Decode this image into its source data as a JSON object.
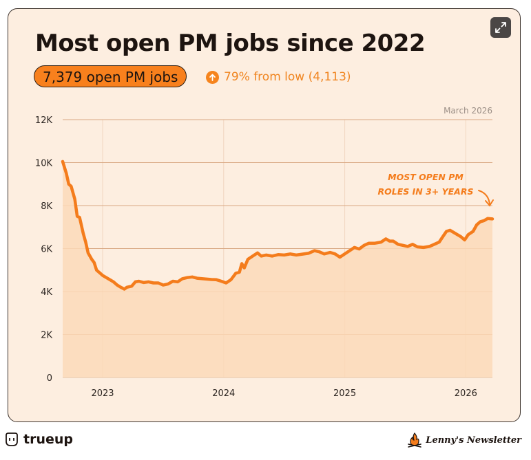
{
  "title": "Most open PM jobs since 2022",
  "headline_pill": "7,379 open PM jobs",
  "change_text": "79% from low (4,113)",
  "as_of": "March 2026",
  "annotation": [
    "MOST OPEN PM",
    "ROLES IN 3+ YEARS"
  ],
  "brand_left": "trueup",
  "brand_right": "Lenny's Newsletter",
  "icons": {
    "expand": "expand-icon",
    "change": "arrow-up-circle-icon",
    "brand_left": "trueup-logo-icon",
    "brand_right": "lenny-flame-icon"
  },
  "colors": {
    "line": "#f47c1c",
    "area": "#fcd9b8",
    "accent": "#f8801d",
    "background": "#fdeee0"
  },
  "chart_data": {
    "type": "area",
    "yticks": [
      "0",
      "2K",
      "4K",
      "6K",
      "8K",
      "10K",
      "12K"
    ],
    "xticks": [
      {
        "label": "2023",
        "x": 2023.0
      },
      {
        "label": "2024",
        "x": 2024.0
      },
      {
        "label": "2025",
        "x": 2025.0
      },
      {
        "label": "2026",
        "x": 2026.0
      }
    ],
    "xlim": [
      2022.67,
      2026.22
    ],
    "ylim": [
      0,
      12000
    ],
    "grid": true,
    "points": [
      [
        2022.67,
        10050
      ],
      [
        2022.7,
        9500
      ],
      [
        2022.72,
        9000
      ],
      [
        2022.74,
        8900
      ],
      [
        2022.77,
        8300
      ],
      [
        2022.79,
        7500
      ],
      [
        2022.81,
        7450
      ],
      [
        2022.84,
        6700
      ],
      [
        2022.86,
        6300
      ],
      [
        2022.88,
        5800
      ],
      [
        2022.91,
        5500
      ],
      [
        2022.93,
        5350
      ],
      [
        2022.95,
        5000
      ],
      [
        2022.98,
        4850
      ],
      [
        2023.0,
        4750
      ],
      [
        2023.03,
        4650
      ],
      [
        2023.06,
        4550
      ],
      [
        2023.09,
        4450
      ],
      [
        2023.12,
        4300
      ],
      [
        2023.15,
        4200
      ],
      [
        2023.18,
        4113
      ],
      [
        2023.2,
        4200
      ],
      [
        2023.24,
        4250
      ],
      [
        2023.27,
        4450
      ],
      [
        2023.3,
        4480
      ],
      [
        2023.34,
        4420
      ],
      [
        2023.38,
        4450
      ],
      [
        2023.42,
        4400
      ],
      [
        2023.46,
        4400
      ],
      [
        2023.5,
        4300
      ],
      [
        2023.54,
        4350
      ],
      [
        2023.58,
        4480
      ],
      [
        2023.62,
        4450
      ],
      [
        2023.66,
        4600
      ],
      [
        2023.7,
        4650
      ],
      [
        2023.74,
        4680
      ],
      [
        2023.78,
        4620
      ],
      [
        2023.82,
        4600
      ],
      [
        2023.86,
        4580
      ],
      [
        2023.9,
        4560
      ],
      [
        2023.94,
        4550
      ],
      [
        2023.98,
        4480
      ],
      [
        2024.02,
        4400
      ],
      [
        2024.06,
        4550
      ],
      [
        2024.1,
        4850
      ],
      [
        2024.13,
        4900
      ],
      [
        2024.15,
        5300
      ],
      [
        2024.17,
        5100
      ],
      [
        2024.2,
        5500
      ],
      [
        2024.24,
        5650
      ],
      [
        2024.28,
        5800
      ],
      [
        2024.31,
        5650
      ],
      [
        2024.35,
        5700
      ],
      [
        2024.4,
        5650
      ],
      [
        2024.45,
        5720
      ],
      [
        2024.5,
        5700
      ],
      [
        2024.55,
        5750
      ],
      [
        2024.6,
        5700
      ],
      [
        2024.65,
        5740
      ],
      [
        2024.7,
        5780
      ],
      [
        2024.75,
        5900
      ],
      [
        2024.79,
        5850
      ],
      [
        2024.83,
        5750
      ],
      [
        2024.88,
        5820
      ],
      [
        2024.92,
        5750
      ],
      [
        2024.96,
        5600
      ],
      [
        2025.0,
        5750
      ],
      [
        2025.04,
        5900
      ],
      [
        2025.08,
        6050
      ],
      [
        2025.12,
        5980
      ],
      [
        2025.16,
        6150
      ],
      [
        2025.2,
        6250
      ],
      [
        2025.25,
        6250
      ],
      [
        2025.3,
        6300
      ],
      [
        2025.34,
        6450
      ],
      [
        2025.37,
        6350
      ],
      [
        2025.4,
        6350
      ],
      [
        2025.44,
        6200
      ],
      [
        2025.48,
        6150
      ],
      [
        2025.52,
        6100
      ],
      [
        2025.56,
        6200
      ],
      [
        2025.6,
        6080
      ],
      [
        2025.65,
        6050
      ],
      [
        2025.7,
        6100
      ],
      [
        2025.74,
        6200
      ],
      [
        2025.78,
        6300
      ],
      [
        2025.81,
        6550
      ],
      [
        2025.84,
        6800
      ],
      [
        2025.87,
        6850
      ],
      [
        2025.9,
        6750
      ],
      [
        2025.93,
        6650
      ],
      [
        2025.96,
        6550
      ],
      [
        2025.99,
        6400
      ],
      [
        2026.02,
        6650
      ],
      [
        2026.06,
        6800
      ],
      [
        2026.09,
        7100
      ],
      [
        2026.12,
        7250
      ],
      [
        2026.15,
        7300
      ],
      [
        2026.18,
        7400
      ],
      [
        2026.22,
        7379
      ]
    ]
  }
}
